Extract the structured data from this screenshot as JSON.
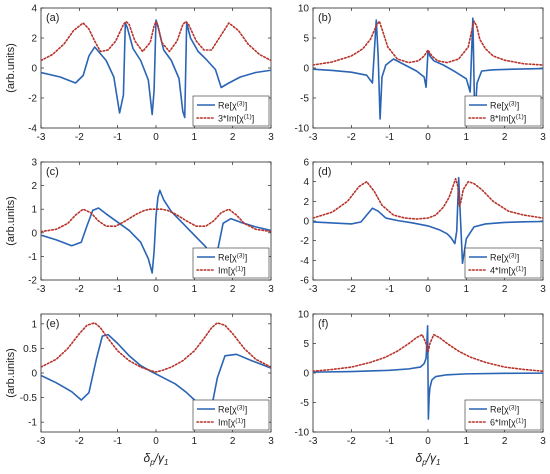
{
  "figure": {
    "ylabel": "(arb.units)",
    "xlabel": "δp/γ1",
    "xlabel_main": "δ",
    "xlabel_sub1": "p",
    "xlabel_slash": "/γ",
    "xlabel_sub2": "1"
  },
  "chart_data": [
    {
      "type": "line",
      "panel": "(a)",
      "xlim": [
        -3,
        3
      ],
      "ylim": [
        -4,
        4
      ],
      "xticks": [
        -3,
        -2,
        -1,
        0,
        1,
        2,
        3
      ],
      "yticks": [
        -4,
        -2,
        0,
        2,
        4
      ],
      "ylabel": "(arb.units)",
      "legend_location": "bottom-right",
      "series": [
        {
          "name": "Re[χ(3)]",
          "color": "#2a64b5",
          "style": "solid",
          "legend_main": "Re[χ",
          "legend_sup": "(3)",
          "legend_end": "]",
          "x": [
            -3,
            -2.5,
            -2.1,
            -1.9,
            -1.75,
            -1.6,
            -1.5,
            -1.3,
            -1.1,
            -0.95,
            -0.85,
            -0.8,
            -0.75,
            -0.6,
            -0.4,
            -0.2,
            -0.1,
            -0.05,
            0,
            0.05,
            0.2,
            0.4,
            0.6,
            0.7,
            0.75,
            0.8,
            0.9,
            1.1,
            1.3,
            1.55,
            1.7,
            1.9,
            2.2,
            2.6,
            3
          ],
          "y": [
            -0.3,
            -0.6,
            -1.0,
            -0.5,
            0.8,
            1.4,
            1.1,
            0.5,
            -0.6,
            -3.0,
            -1.8,
            3.0,
            2.7,
            1.3,
            0.5,
            -0.8,
            -3.1,
            -1.5,
            3.2,
            2.8,
            1.2,
            0.5,
            -0.7,
            -2.9,
            -3.3,
            3.0,
            2.0,
            1.1,
            0.6,
            -0.1,
            -1.3,
            -1.0,
            -0.6,
            -0.3,
            -0.15
          ]
        },
        {
          "name": "3*Im[χ(1)]",
          "color": "#b8332b",
          "style": "dotted",
          "legend_main": "3*Im[χ",
          "legend_sup": "(1)",
          "legend_end": "]",
          "x": [
            -3,
            -2.7,
            -2.4,
            -2.15,
            -1.9,
            -1.75,
            -1.6,
            -1.45,
            -1.25,
            -1.05,
            -0.85,
            -0.78,
            -0.7,
            -0.55,
            -0.35,
            -0.15,
            -0.05,
            0,
            0.05,
            0.15,
            0.35,
            0.55,
            0.7,
            0.78,
            0.85,
            1.05,
            1.25,
            1.45,
            1.65,
            1.9,
            2.15,
            2.4,
            2.7,
            3
          ],
          "y": [
            0.5,
            0.9,
            1.6,
            2.5,
            3.0,
            2.6,
            1.8,
            1.1,
            1.2,
            1.8,
            2.9,
            3.1,
            2.9,
            1.8,
            1.1,
            1.7,
            2.8,
            3.1,
            2.8,
            1.7,
            1.1,
            1.8,
            2.9,
            3.1,
            2.9,
            1.8,
            1.2,
            1.2,
            2.0,
            3.0,
            2.5,
            1.6,
            0.9,
            0.5
          ]
        }
      ]
    },
    {
      "type": "line",
      "panel": "(b)",
      "xlim": [
        -3,
        3
      ],
      "ylim": [
        -10,
        10
      ],
      "xticks": [
        -3,
        -2,
        -1,
        0,
        1,
        2,
        3
      ],
      "yticks": [
        -10,
        -5,
        0,
        5,
        10
      ],
      "legend_location": "bottom-right",
      "series": [
        {
          "name": "Re[χ(3)]",
          "color": "#2a64b5",
          "style": "solid",
          "legend_main": "Re[χ",
          "legend_sup": "(3)",
          "legend_end": "]",
          "x": [
            -3,
            -2.5,
            -2,
            -1.6,
            -1.45,
            -1.35,
            -1.3,
            -1.25,
            -1.2,
            -1.1,
            -0.9,
            -0.6,
            -0.3,
            -0.1,
            -0.05,
            0,
            0.05,
            0.15,
            0.4,
            0.7,
            1.0,
            1.1,
            1.17,
            1.22,
            1.28,
            1.4,
            1.7,
            2.2,
            3
          ],
          "y": [
            -0.2,
            -0.4,
            -0.7,
            -1.2,
            -2.5,
            8.0,
            2.0,
            -8.5,
            -1.5,
            0.5,
            1.5,
            0.5,
            -0.5,
            -1.5,
            -3.2,
            2.8,
            2.0,
            1.2,
            0.5,
            -0.6,
            -1.8,
            -4.0,
            8.3,
            -8.5,
            -2.5,
            -0.5,
            -0.3,
            -0.2,
            -0.1
          ]
        },
        {
          "name": "8*Im[χ(1)]",
          "color": "#b8332b",
          "style": "dotted",
          "legend_main": "8*Im[χ",
          "legend_sup": "(1)",
          "legend_end": "]",
          "x": [
            -3,
            -2.5,
            -2,
            -1.7,
            -1.5,
            -1.35,
            -1.27,
            -1.2,
            -1.05,
            -0.8,
            -0.5,
            -0.25,
            -0.1,
            0,
            0.1,
            0.25,
            0.5,
            0.8,
            1.05,
            1.15,
            1.2,
            1.27,
            1.35,
            1.5,
            1.7,
            2,
            2.5,
            3
          ],
          "y": [
            0.5,
            1.0,
            2.0,
            3.2,
            4.8,
            7.0,
            7.8,
            6.5,
            3.5,
            1.5,
            0.9,
            1.2,
            2.0,
            3.0,
            2.0,
            1.2,
            0.9,
            1.5,
            3.5,
            6.5,
            7.8,
            7.0,
            4.8,
            3.2,
            2.0,
            1.3,
            0.7,
            0.5
          ]
        }
      ]
    },
    {
      "type": "line",
      "panel": "(c)",
      "xlim": [
        -3,
        3
      ],
      "ylim": [
        -2,
        3
      ],
      "xticks": [
        -3,
        -2,
        -1,
        0,
        1,
        2,
        3
      ],
      "yticks": [
        -2,
        -1,
        0,
        1,
        2,
        3
      ],
      "ylabel": "(arb.units)",
      "legend_location": "bottom-right",
      "series": [
        {
          "name": "Re[χ(3)]",
          "color": "#2a64b5",
          "style": "solid",
          "legend_main": "Re[χ",
          "legend_sup": "(3)",
          "legend_end": "]",
          "x": [
            -3,
            -2.6,
            -2.2,
            -1.95,
            -1.8,
            -1.65,
            -1.5,
            -1.3,
            -1.0,
            -0.7,
            -0.4,
            -0.2,
            -0.1,
            -0.05,
            0,
            0.05,
            0.1,
            0.2,
            0.4,
            0.7,
            1.0,
            1.3,
            1.5,
            1.6,
            1.75,
            1.95,
            2.2,
            2.6,
            3
          ],
          "y": [
            -0.1,
            -0.3,
            -0.55,
            -0.4,
            0.3,
            0.95,
            1.05,
            0.8,
            0.45,
            0.1,
            -0.4,
            -1.1,
            -1.7,
            -0.8,
            0.7,
            1.5,
            1.8,
            1.4,
            0.9,
            0.4,
            -0.1,
            -0.6,
            -1.1,
            -0.8,
            0.4,
            0.6,
            0.45,
            0.25,
            0.1
          ]
        },
        {
          "name": "Im[χ(1)]",
          "color": "#b8332b",
          "style": "dotted",
          "legend_main": "Im[χ",
          "legend_sup": "(1)",
          "legend_end": "]",
          "x": [
            -3,
            -2.6,
            -2.3,
            -2.1,
            -1.9,
            -1.7,
            -1.5,
            -1.3,
            -1.05,
            -0.8,
            -0.5,
            -0.3,
            -0.15,
            0,
            0.15,
            0.3,
            0.5,
            0.8,
            1.05,
            1.3,
            1.5,
            1.7,
            1.9,
            2.1,
            2.3,
            2.6,
            3
          ],
          "y": [
            0.05,
            0.15,
            0.4,
            0.75,
            1.0,
            0.85,
            0.5,
            0.28,
            0.28,
            0.5,
            0.8,
            0.95,
            1.0,
            1.0,
            1.0,
            0.95,
            0.8,
            0.5,
            0.28,
            0.28,
            0.5,
            0.85,
            1.0,
            0.75,
            0.4,
            0.15,
            0.05
          ]
        }
      ]
    },
    {
      "type": "line",
      "panel": "(d)",
      "xlim": [
        -3,
        3
      ],
      "ylim": [
        -6,
        6
      ],
      "xticks": [
        -3,
        -2,
        -1,
        0,
        1,
        2,
        3
      ],
      "yticks": [
        -6,
        -4,
        -2,
        0,
        2,
        4,
        6
      ],
      "legend_location": "bottom-right",
      "series": [
        {
          "name": "Re[χ(3)]",
          "color": "#2a64b5",
          "style": "solid",
          "legend_main": "Re[χ",
          "legend_sup": "(3)",
          "legend_end": "]",
          "x": [
            -3,
            -2.5,
            -2,
            -1.75,
            -1.6,
            -1.45,
            -1.3,
            -1.1,
            -0.8,
            -0.4,
            0,
            0.3,
            0.5,
            0.6,
            0.7,
            0.75,
            0.8,
            0.85,
            0.9,
            1.0,
            1.2,
            1.5,
            2,
            2.5,
            3
          ],
          "y": [
            -0.1,
            -0.2,
            -0.3,
            -0.1,
            0.6,
            1.3,
            1.0,
            0.3,
            0.05,
            -0.2,
            -0.5,
            -0.9,
            -1.3,
            -1.7,
            -2.3,
            -1.0,
            4.4,
            0.0,
            -4.3,
            -1.8,
            -0.6,
            -0.3,
            -0.15,
            -0.08,
            -0.05
          ]
        },
        {
          "name": "4*Im[χ(1)]",
          "color": "#b8332b",
          "style": "dotted",
          "legend_main": "4*Im[χ",
          "legend_sup": "(1)",
          "legend_end": "]",
          "x": [
            -3,
            -2.5,
            -2.1,
            -1.8,
            -1.6,
            -1.4,
            -1.2,
            -0.9,
            -0.6,
            -0.3,
            0,
            0.2,
            0.4,
            0.55,
            0.65,
            0.72,
            0.78,
            0.82,
            0.86,
            0.92,
            1.05,
            1.2,
            1.4,
            1.7,
            2.1,
            2.5,
            3
          ],
          "y": [
            0.3,
            0.9,
            2.0,
            3.5,
            4.0,
            3.0,
            1.6,
            0.6,
            0.3,
            0.2,
            0.3,
            0.6,
            1.4,
            2.4,
            3.5,
            4.3,
            3.5,
            1.5,
            2.0,
            3.2,
            4.0,
            3.8,
            3.2,
            2.0,
            1.0,
            0.6,
            0.3
          ]
        }
      ]
    },
    {
      "type": "line",
      "panel": "(e)",
      "xlim": [
        -3,
        3
      ],
      "ylim": [
        -1.2,
        1.2
      ],
      "xticks": [
        -3,
        -2,
        -1,
        0,
        1,
        2,
        3
      ],
      "yticks": [
        -1,
        -0.5,
        0,
        0.5,
        1
      ],
      "ylabel": "(arb.units)",
      "legend_location": "bottom-right",
      "series": [
        {
          "name": "Re[χ(3)]",
          "color": "#2a64b5",
          "style": "solid",
          "legend_main": "Re[χ",
          "legend_sup": "(3)",
          "legend_end": "]",
          "x": [
            -3,
            -2.6,
            -2.2,
            -1.95,
            -1.75,
            -1.55,
            -1.4,
            -1.25,
            -1.0,
            -0.7,
            -0.4,
            -0.1,
            0.2,
            0.5,
            0.8,
            1.1,
            1.3,
            1.45,
            1.6,
            1.8,
            2.1,
            2.5,
            3
          ],
          "y": [
            -0.05,
            -0.2,
            -0.38,
            -0.55,
            -0.4,
            0.3,
            0.75,
            0.78,
            0.6,
            0.35,
            0.15,
            0.02,
            -0.1,
            -0.22,
            -0.4,
            -0.62,
            -0.78,
            -0.7,
            -0.1,
            0.35,
            0.38,
            0.25,
            0.1
          ]
        },
        {
          "name": "Im[χ(1)]",
          "color": "#b8332b",
          "style": "dotted",
          "legend_main": "Im[χ",
          "legend_sup": "(1)",
          "legend_end": "]",
          "x": [
            -3,
            -2.6,
            -2.3,
            -2.0,
            -1.8,
            -1.6,
            -1.45,
            -1.25,
            -1.0,
            -0.7,
            -0.4,
            -0.15,
            0,
            0.15,
            0.4,
            0.7,
            1.0,
            1.25,
            1.45,
            1.6,
            1.8,
            2.0,
            2.3,
            2.6,
            3
          ],
          "y": [
            0.12,
            0.28,
            0.5,
            0.8,
            0.97,
            1.02,
            0.92,
            0.7,
            0.45,
            0.25,
            0.12,
            0.05,
            0.02,
            0.05,
            0.12,
            0.25,
            0.45,
            0.7,
            0.92,
            1.02,
            0.97,
            0.8,
            0.5,
            0.28,
            0.12
          ]
        }
      ]
    },
    {
      "type": "line",
      "panel": "(f)",
      "xlim": [
        -3,
        3
      ],
      "ylim": [
        -10,
        10
      ],
      "xticks": [
        -3,
        -2,
        -1,
        0,
        1,
        2,
        3
      ],
      "yticks": [
        -10,
        -5,
        0,
        5,
        10
      ],
      "legend_location": "bottom-right",
      "series": [
        {
          "name": "Re[χ(3)]",
          "color": "#2a64b5",
          "style": "solid",
          "legend_main": "Re[χ",
          "legend_sup": "(3)",
          "legend_end": "]",
          "x": [
            -3,
            -2,
            -1,
            -0.5,
            -0.2,
            -0.1,
            -0.05,
            -0.03,
            -0.01,
            0.01,
            0.03,
            0.05,
            0.1,
            0.2,
            0.5,
            1,
            2,
            3
          ],
          "y": [
            0.15,
            0.25,
            0.45,
            0.7,
            1.0,
            1.6,
            2.5,
            5.0,
            8.0,
            -7.8,
            -4.0,
            -2.5,
            -1.2,
            -0.6,
            -0.3,
            -0.15,
            -0.05,
            -0.02
          ]
        },
        {
          "name": "6*Im[χ(1)]",
          "color": "#b8332b",
          "style": "dotted",
          "legend_main": "6*Im[χ",
          "legend_sup": "(1)",
          "legend_end": "]",
          "x": [
            -3,
            -2.5,
            -2,
            -1.5,
            -1.1,
            -0.8,
            -0.5,
            -0.3,
            -0.15,
            -0.05,
            0,
            0.05,
            0.15,
            0.3,
            0.5,
            0.8,
            1.1,
            1.5,
            2,
            2.5,
            3
          ],
          "y": [
            0.3,
            0.6,
            1.0,
            1.8,
            2.7,
            3.7,
            5.0,
            6.0,
            6.5,
            5.0,
            3.5,
            5.0,
            6.5,
            6.0,
            5.0,
            3.7,
            2.7,
            1.8,
            1.0,
            0.6,
            0.3
          ]
        }
      ]
    }
  ]
}
